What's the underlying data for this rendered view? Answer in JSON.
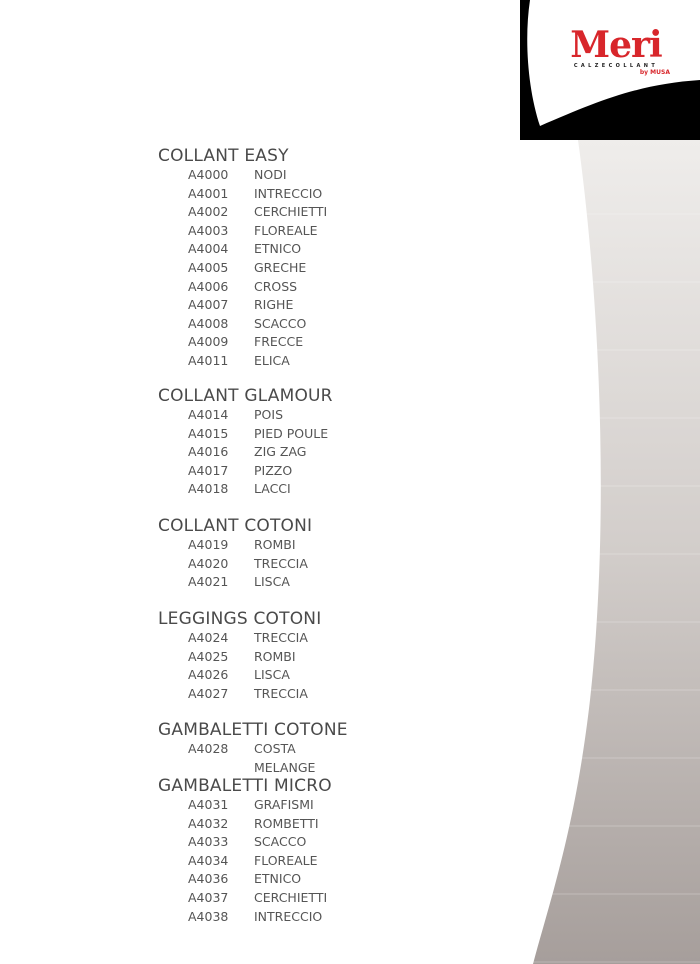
{
  "logo": {
    "brand": "Meri",
    "tagline": "CALZECOLLANT",
    "by": "by MUSA"
  },
  "colors": {
    "brand_red": "#d8262b",
    "panel_black": "#000000",
    "band_top": "#efedeb",
    "band_bottom": "#a69e9b"
  },
  "sections": [
    {
      "title": "COLLANT EASY",
      "items": [
        {
          "code": "A4000",
          "name": "NODI"
        },
        {
          "code": "A4001",
          "name": "INTRECCIO"
        },
        {
          "code": "A4002",
          "name": "CERCHIETTI"
        },
        {
          "code": "A4003",
          "name": "FLOREALE"
        },
        {
          "code": "A4004",
          "name": "ETNICO"
        },
        {
          "code": "A4005",
          "name": "GRECHE"
        },
        {
          "code": "A4006",
          "name": "CROSS"
        },
        {
          "code": "A4007",
          "name": "RIGHE"
        },
        {
          "code": "A4008",
          "name": "SCACCO"
        },
        {
          "code": "A4009",
          "name": "FRECCE"
        },
        {
          "code": "A4011",
          "name": "ELICA"
        }
      ]
    },
    {
      "title": "COLLANT GLAMOUR",
      "items": [
        {
          "code": "A4014",
          "name": "POIS"
        },
        {
          "code": "A4015",
          "name": "PIED POULE"
        },
        {
          "code": "A4016",
          "name": "ZIG ZAG"
        },
        {
          "code": "A4017",
          "name": "PIZZO"
        },
        {
          "code": "A4018",
          "name": "LACCI"
        }
      ]
    },
    {
      "title": "COLLANT COTONI",
      "items": [
        {
          "code": "A4019",
          "name": "ROMBI"
        },
        {
          "code": "A4020",
          "name": "TRECCIA"
        },
        {
          "code": "A4021",
          "name": "LISCA"
        }
      ]
    },
    {
      "title": "LEGGINGS COTONI",
      "items": [
        {
          "code": "A4024",
          "name": "TRECCIA"
        },
        {
          "code": "A4025",
          "name": "ROMBI"
        },
        {
          "code": "A4026",
          "name": "LISCA"
        },
        {
          "code": "A4027",
          "name": "TRECCIA"
        }
      ]
    },
    {
      "title": "GAMBALETTI COTONE",
      "items": [
        {
          "code": "A4028",
          "name": "COSTA MELANGE"
        }
      ]
    },
    {
      "title": "GAMBALETTI MICRO",
      "items": [
        {
          "code": "A4031",
          "name": "GRAFISMI"
        },
        {
          "code": "A4032",
          "name": "ROMBETTI"
        },
        {
          "code": "A4033",
          "name": "SCACCO"
        },
        {
          "code": "A4034",
          "name": "FLOREALE"
        },
        {
          "code": "A4036",
          "name": "ETNICO"
        },
        {
          "code": "A4037",
          "name": "CERCHIETTI"
        },
        {
          "code": "A4038",
          "name": "INTRECCIO"
        }
      ]
    }
  ]
}
